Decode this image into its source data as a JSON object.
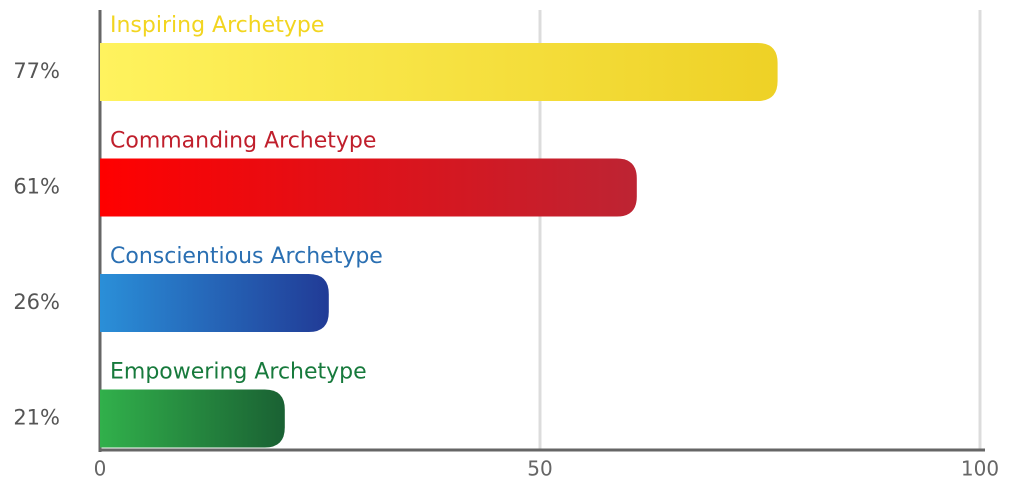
{
  "chart_data": {
    "type": "hbar",
    "categories": [
      "Inspiring Archetype",
      "Commanding Archetype",
      "Conscientious Archetype",
      "Empowering Archetype"
    ],
    "values": [
      77,
      61,
      26,
      21
    ],
    "value_labels": [
      "77%",
      "61%",
      "26%",
      "21%"
    ],
    "colors": [
      [
        "#fff35e",
        "#eed126"
      ],
      [
        "#ff0000",
        "#bd2433"
      ],
      [
        "#2a8fd8",
        "#213b96"
      ],
      [
        "#31b04b",
        "#1a6133"
      ]
    ],
    "label_colors": [
      "#f2d520",
      "#c01f2c",
      "#2a6fb2",
      "#177a3c"
    ],
    "xlim": [
      0,
      100
    ],
    "xticks": [
      0,
      50,
      100
    ],
    "grid": true
  }
}
